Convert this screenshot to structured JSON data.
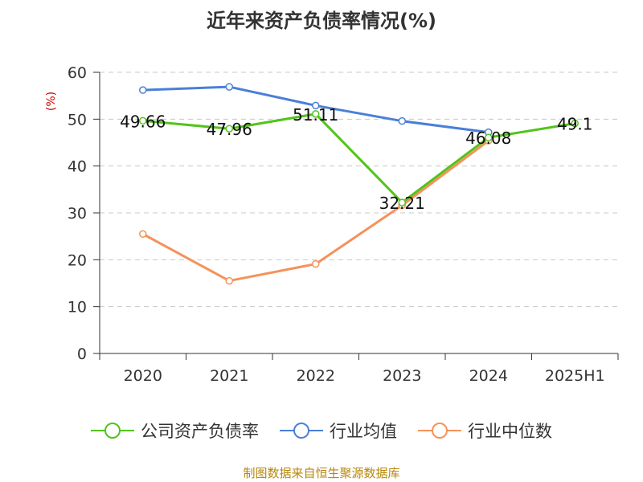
{
  "title": "近年来资产负债率情况(%)",
  "source": "制图数据来自恒生聚源数据库",
  "chart_data": {
    "type": "line",
    "title": "近年来资产负债率情况(%)",
    "unit_label": "(%)",
    "categories": [
      "2020",
      "2021",
      "2022",
      "2023",
      "2024",
      "2025H1"
    ],
    "ylim": [
      0,
      60
    ],
    "yticks": [
      0,
      10,
      20,
      30,
      40,
      50,
      60
    ],
    "ytick_labels": [
      "0",
      "10",
      "20",
      "30",
      "40",
      "50",
      "60"
    ],
    "grid": true,
    "legend_position": "bottom",
    "series": [
      {
        "name": "公司资产负债率",
        "color": "#52c41a",
        "values": [
          49.66,
          47.96,
          51.11,
          32.21,
          46.08,
          49.1
        ],
        "labels": [
          "49.66",
          "47.96",
          "51.11",
          "32.21",
          "46.08",
          "49.1"
        ]
      },
      {
        "name": "行业均值",
        "color": "#4a7fd8",
        "values": [
          56.2,
          56.9,
          52.9,
          49.6,
          47.2,
          null
        ],
        "labels": []
      },
      {
        "name": "行业中位数",
        "color": "#f5925a",
        "values": [
          25.5,
          15.5,
          19.1,
          31.6,
          45.4,
          null
        ],
        "labels": []
      }
    ]
  }
}
